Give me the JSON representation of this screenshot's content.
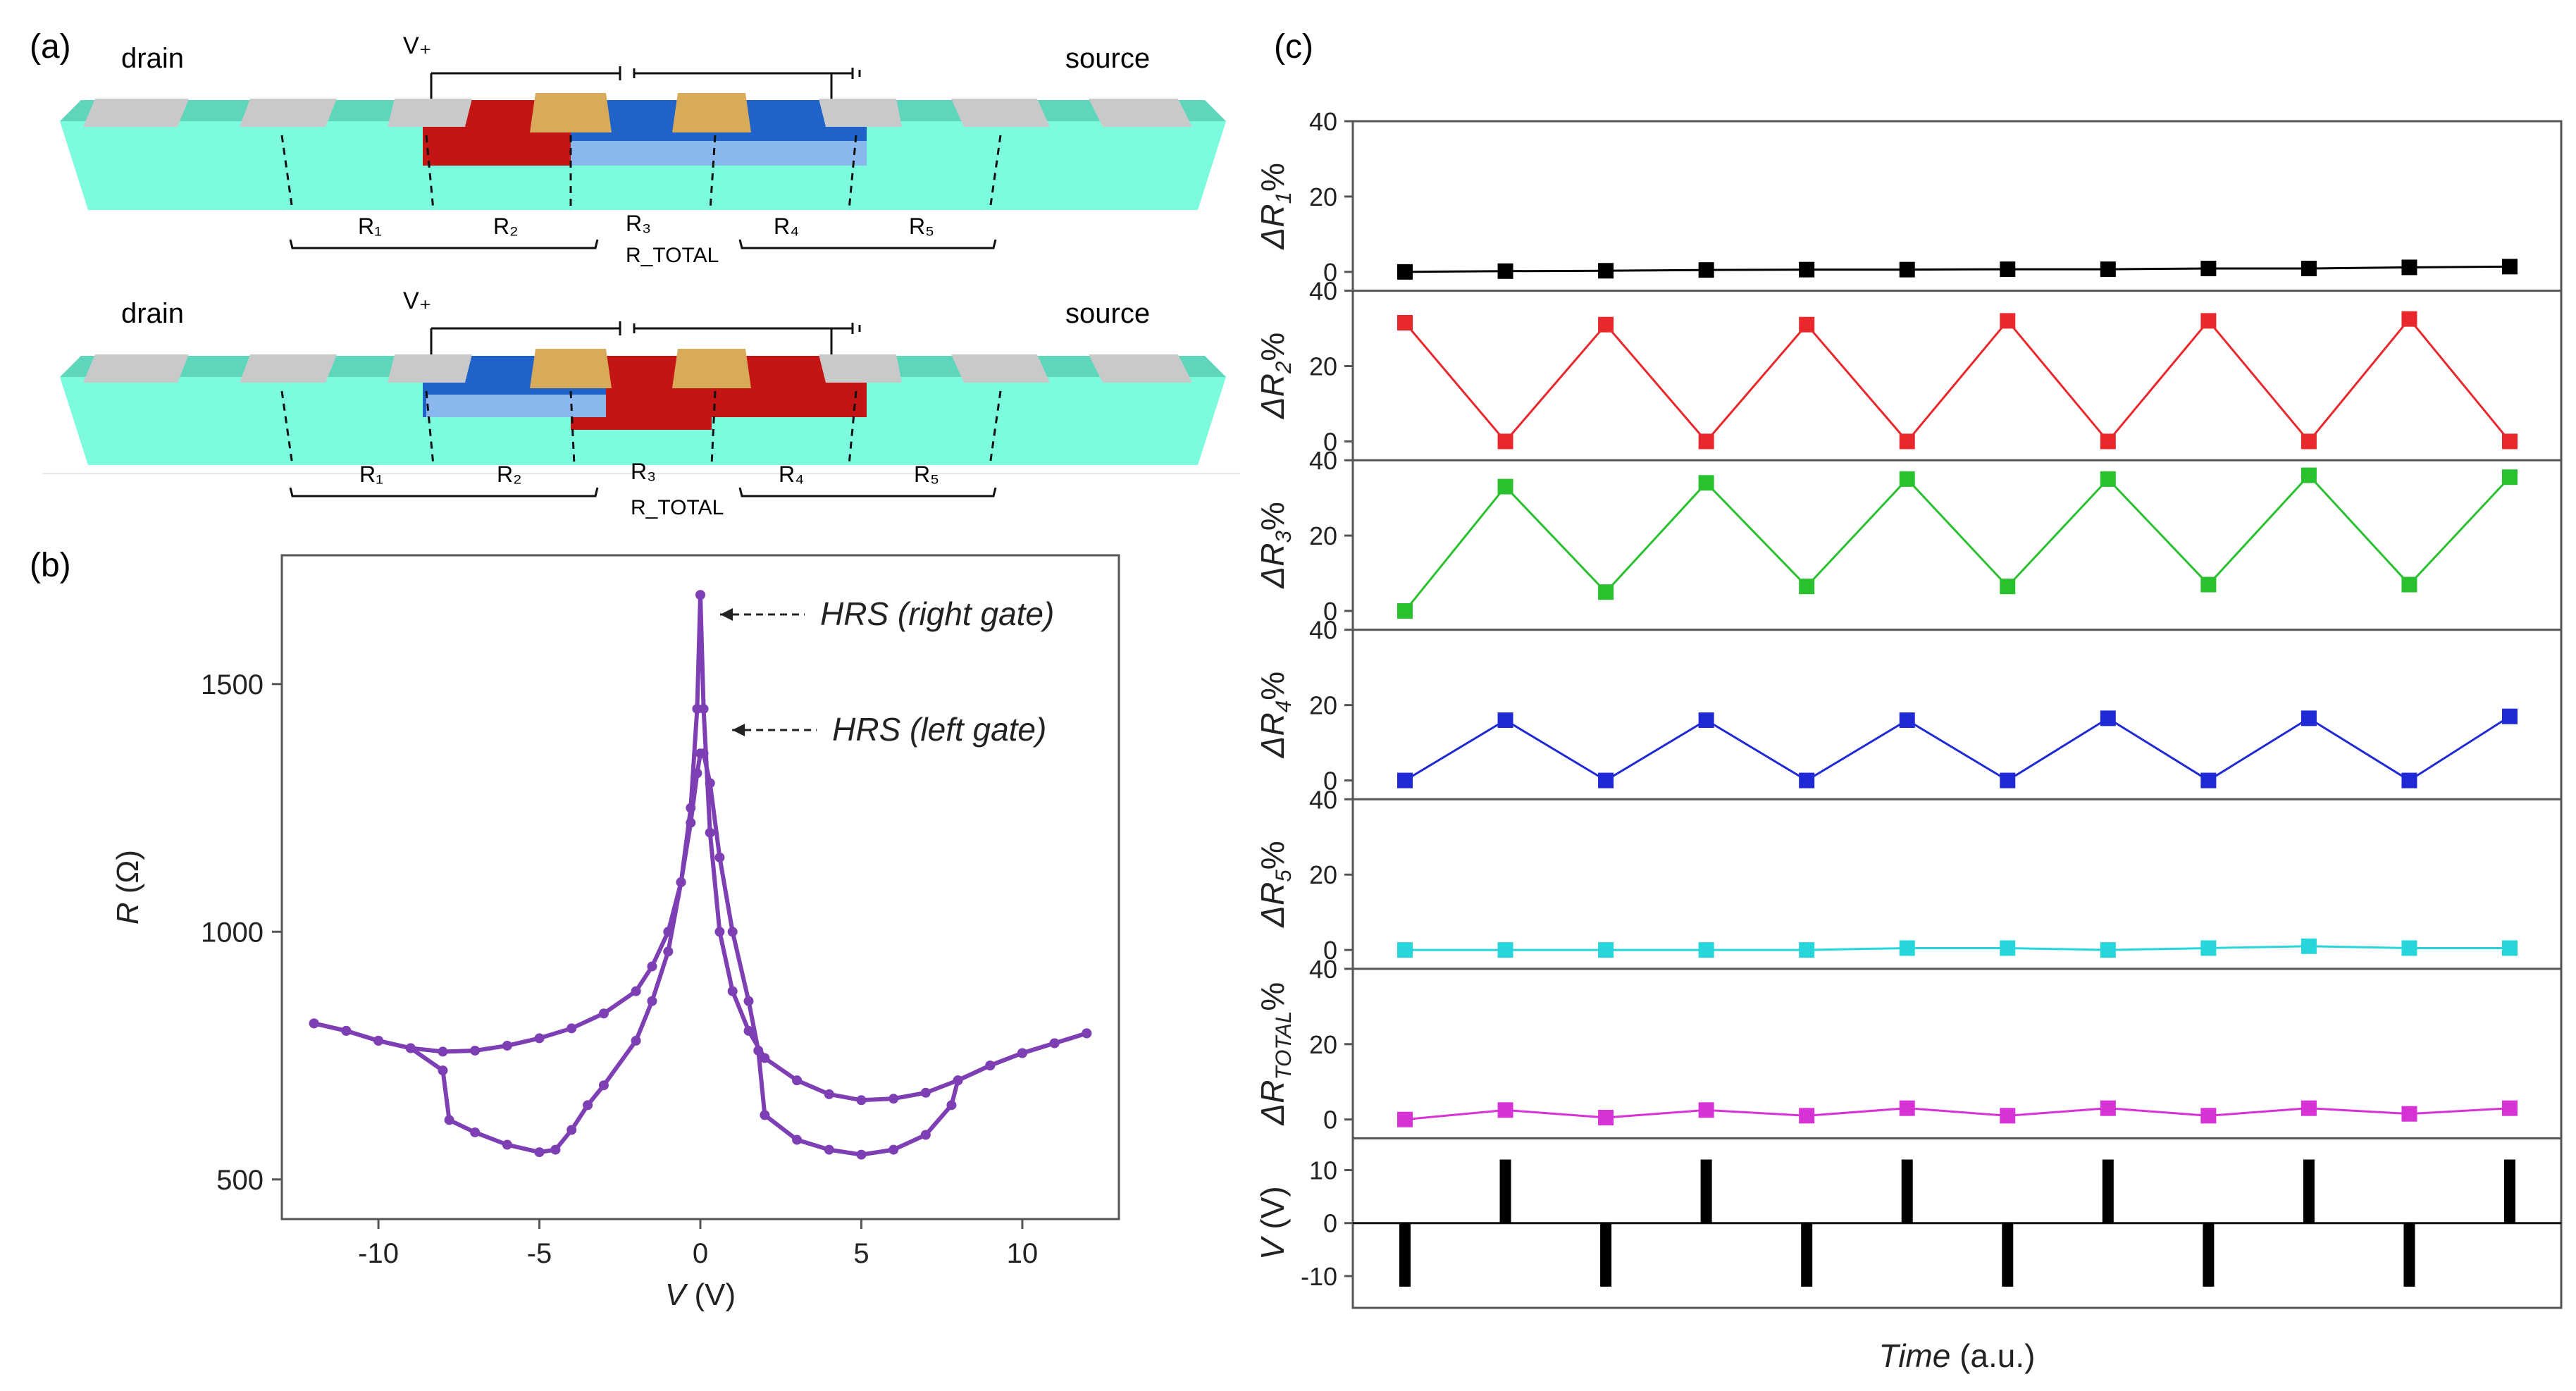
{
  "panel_labels": {
    "a": "(a)",
    "b": "(b)",
    "c": "(c)"
  },
  "colors": {
    "channel": "#7dfbdf",
    "channel_dark": "#5ed6bb",
    "contact": "#c9c9c9",
    "gate": "#d8ab5a",
    "red_region": "#c41515",
    "blue_region": "#1f63c9",
    "curve": "#7d3fb3",
    "series": [
      "#000000",
      "#e8282c",
      "#2ac12f",
      "#1f2ad6",
      "#27d6db",
      "#d632d6"
    ]
  },
  "schematic": {
    "top": {
      "drain": "drain",
      "source": "source",
      "vplus": "V₊",
      "labels": {
        "r1": "R₁",
        "r2": "R₂",
        "r3": "R₃",
        "r4": "R₄",
        "r5": "R₅",
        "rtotal": "R_TOTAL"
      }
    },
    "bottom": {
      "drain": "drain",
      "source": "source",
      "vplus": "V₊",
      "labels": {
        "r1": "R₁",
        "r2": "R₂",
        "r3": "R₃",
        "r4": "R₄",
        "r5": "R₅",
        "rtotal": "R_TOTAL"
      }
    }
  },
  "chart_data": [
    {
      "type": "line",
      "panel": "(b)",
      "xlabel": "V (V)",
      "ylabel": "R (Ω)",
      "xlim": [
        -13,
        13
      ],
      "ylim": [
        420,
        1760
      ],
      "xticks": [
        -10,
        -5,
        0,
        5,
        10
      ],
      "yticks": [
        500,
        1000,
        1500
      ],
      "annotations": [
        {
          "text": "HRS (right gate)",
          "x": 0,
          "y": 1680
        },
        {
          "text": "HRS (left gate)",
          "x": 0.2,
          "y": 1360
        }
      ],
      "series": [
        {
          "x": [
            -12,
            -11,
            -10,
            -9,
            -8,
            -7,
            -6,
            -5,
            -4,
            -3,
            -2,
            -1.5,
            -1,
            -0.6,
            -0.3,
            -0.1,
            0,
            0.1,
            0.3,
            0.6,
            1,
            1.5,
            2,
            3,
            4,
            5,
            6,
            7,
            8,
            9,
            10,
            11,
            12
          ],
          "y": [
            815,
            800,
            780,
            765,
            758,
            760,
            770,
            785,
            805,
            835,
            880,
            930,
            1000,
            1100,
            1250,
            1450,
            1680,
            1450,
            1200,
            1000,
            880,
            800,
            745,
            700,
            672,
            660,
            663,
            675,
            700,
            730,
            755,
            775,
            795
          ]
        },
        {
          "x": [
            12,
            11,
            10,
            9,
            8,
            7.8,
            7,
            6,
            5,
            4,
            3,
            2,
            1.8,
            1.5,
            1,
            0.6,
            0.3,
            0.1,
            0,
            -0.1,
            -0.3,
            -0.6,
            -1,
            -1.5,
            -2,
            -3,
            -3.5,
            -4,
            -4.5,
            -5,
            -6,
            -7,
            -7.8,
            -8,
            -9,
            -10,
            -11,
            -12
          ],
          "y": [
            795,
            775,
            755,
            730,
            700,
            650,
            590,
            560,
            550,
            560,
            580,
            630,
            760,
            860,
            1000,
            1150,
            1300,
            1360,
            1360,
            1320,
            1220,
            1100,
            960,
            860,
            780,
            690,
            650,
            600,
            560,
            555,
            570,
            595,
            620,
            720,
            765,
            780,
            800,
            815
          ]
        }
      ]
    },
    {
      "type": "line",
      "panel": "(c)",
      "xlabel": "Time (a.u.)",
      "subplots": [
        {
          "ylabel": "ΔR1%",
          "ylim": [
            -5,
            40
          ],
          "yticks": [
            0,
            20,
            40
          ],
          "values": [
            0,
            0.2,
            0.3,
            0.5,
            0.6,
            0.6,
            0.7,
            0.7,
            0.9,
            0.9,
            1.2,
            1.4
          ]
        },
        {
          "ylabel": "ΔR2%",
          "ylim": [
            -5,
            40
          ],
          "yticks": [
            0,
            20,
            40
          ],
          "values": [
            31.5,
            0,
            31,
            0,
            31,
            0,
            32,
            0,
            32,
            0,
            32.5,
            0
          ]
        },
        {
          "ylabel": "ΔR3%",
          "ylim": [
            -5,
            40
          ],
          "yticks": [
            0,
            20,
            40
          ],
          "values": [
            0,
            33,
            5,
            34,
            6.5,
            35,
            6.5,
            35,
            7,
            36,
            7,
            35.5
          ]
        },
        {
          "ylabel": "ΔR4%",
          "ylim": [
            -5,
            40
          ],
          "yticks": [
            0,
            20,
            40
          ],
          "values": [
            0,
            16,
            0,
            16,
            0,
            16,
            0,
            16.5,
            0,
            16.5,
            0,
            17
          ]
        },
        {
          "ylabel": "ΔR5%",
          "ylim": [
            -5,
            40
          ],
          "yticks": [
            0,
            20,
            40
          ],
          "values": [
            0,
            0,
            0,
            0,
            0,
            0.5,
            0.5,
            0,
            0.5,
            1,
            0.5,
            0.5
          ]
        },
        {
          "ylabel": "ΔR_TOTAL%",
          "ylim": [
            -5,
            40
          ],
          "yticks": [
            0,
            20,
            40
          ],
          "values": [
            0,
            2.5,
            0.5,
            2.5,
            1,
            3,
            1,
            3,
            1,
            3,
            1.5,
            3
          ]
        },
        {
          "ylabel": "V (V)",
          "ylim": [
            -16,
            16
          ],
          "yticks": [
            -10,
            0,
            10
          ],
          "type": "pulse",
          "values": [
            -12,
            12,
            -12,
            12,
            -12,
            12,
            -12,
            12,
            -12,
            12,
            -12,
            12
          ]
        }
      ]
    }
  ]
}
